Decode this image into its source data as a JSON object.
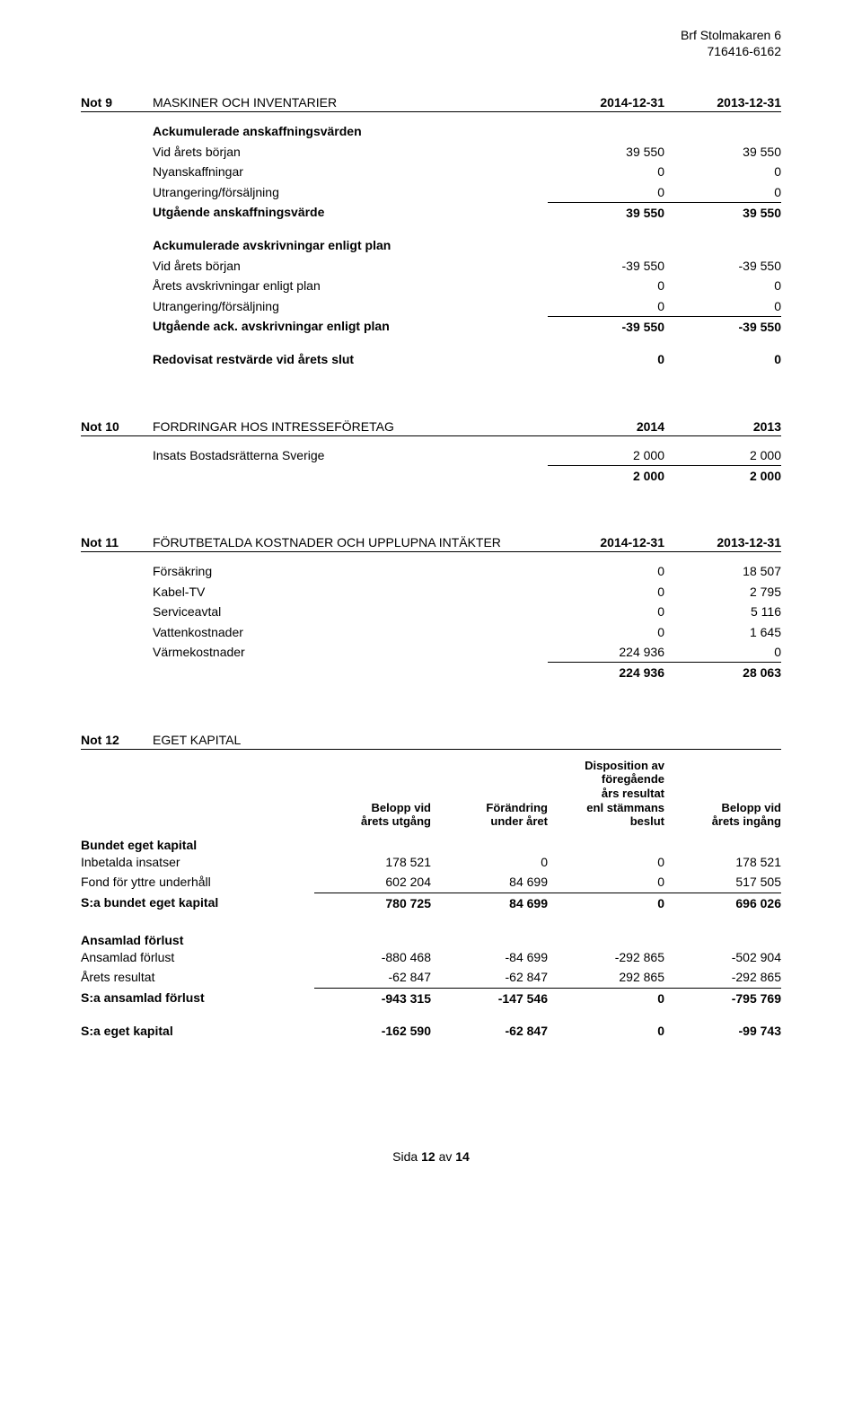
{
  "header": {
    "org": "Brf Stolmakaren 6",
    "orgnr": "716416-6162"
  },
  "note9": {
    "label": "Not 9",
    "title": "MASKINER OCH INVENTARIER",
    "col1": "2014-12-31",
    "col2": "2013-12-31",
    "sec1_title": "Ackumulerade anskaffningsvärden",
    "rows1": [
      {
        "label": "Vid årets början",
        "v1": "39 550",
        "v2": "39 550"
      },
      {
        "label": "Nyanskaffningar",
        "v1": "0",
        "v2": "0"
      },
      {
        "label": "Utrangering/försäljning",
        "v1": "0",
        "v2": "0"
      }
    ],
    "sum1": {
      "label": "Utgående anskaffningsvärde",
      "v1": "39 550",
      "v2": "39 550"
    },
    "sec2_title": "Ackumulerade avskrivningar enligt plan",
    "rows2": [
      {
        "label": "Vid årets början",
        "v1": "-39 550",
        "v2": "-39 550"
      },
      {
        "label": "Årets avskrivningar enligt plan",
        "v1": "0",
        "v2": "0"
      },
      {
        "label": "Utrangering/försäljning",
        "v1": "0",
        "v2": "0"
      }
    ],
    "sum2": {
      "label": "Utgående ack. avskrivningar enligt plan",
      "v1": "-39 550",
      "v2": "-39 550"
    },
    "final": {
      "label": "Redovisat restvärde vid årets slut",
      "v1": "0",
      "v2": "0"
    }
  },
  "note10": {
    "label": "Not 10",
    "title": "FORDRINGAR HOS INTRESSEFÖRETAG",
    "col1": "2014",
    "col2": "2013",
    "rows": [
      {
        "label": "Insats Bostadsrätterna Sverige",
        "v1": "2 000",
        "v2": "2 000"
      }
    ],
    "sum": {
      "v1": "2 000",
      "v2": "2 000"
    }
  },
  "note11": {
    "label": "Not 11",
    "title": "FÖRUTBETALDA KOSTNADER OCH UPPLUPNA INTÄKTER",
    "col1": "2014-12-31",
    "col2": "2013-12-31",
    "rows": [
      {
        "label": "Försäkring",
        "v1": "0",
        "v2": "18 507"
      },
      {
        "label": "Kabel-TV",
        "v1": "0",
        "v2": "2 795"
      },
      {
        "label": "Serviceavtal",
        "v1": "0",
        "v2": "5 116"
      },
      {
        "label": "Vattenkostnader",
        "v1": "0",
        "v2": "1 645"
      },
      {
        "label": "Värmekostnader",
        "v1": "224 936",
        "v2": "0"
      }
    ],
    "sum": {
      "v1": "224 936",
      "v2": "28 063"
    }
  },
  "note12": {
    "label": "Not 12",
    "title": "EGET KAPITAL",
    "head": {
      "c1": "Belopp vid\nårets utgång",
      "c2": "Förändring\nunder året",
      "c3": "Disposition av\nföregående\nårs resultat\nenl stämmans\nbeslut",
      "c4": "Belopp vid\nårets ingång"
    },
    "sec1_title": "Bundet eget kapital",
    "rows1": [
      {
        "label": "Inbetalda insatser",
        "c1": "178 521",
        "c2": "0",
        "c3": "0",
        "c4": "178 521"
      },
      {
        "label": "Fond för yttre underhåll",
        "c1": "602 204",
        "c2": "84 699",
        "c3": "0",
        "c4": "517 505"
      }
    ],
    "sum1": {
      "label": "S:a bundet eget kapital",
      "c1": "780 725",
      "c2": "84 699",
      "c3": "0",
      "c4": "696 026"
    },
    "sec2_title": "Ansamlad förlust",
    "rows2": [
      {
        "label": "Ansamlad förlust",
        "c1": "-880 468",
        "c2": "-84 699",
        "c3": "-292 865",
        "c4": "-502 904"
      },
      {
        "label": "Årets resultat",
        "c1": "-62 847",
        "c2": "-62 847",
        "c3": "292 865",
        "c4": "-292 865"
      }
    ],
    "sum2": {
      "label": "S:a ansamlad förlust",
      "c1": "-943 315",
      "c2": "-147 546",
      "c3": "0",
      "c4": "-795 769"
    },
    "total": {
      "label": "S:a eget kapital",
      "c1": "-162 590",
      "c2": "-62 847",
      "c3": "0",
      "c4": "-99 743"
    }
  },
  "footer": {
    "pagelabel": "Sida",
    "page": "12",
    "of_label": "av",
    "total": "14"
  }
}
